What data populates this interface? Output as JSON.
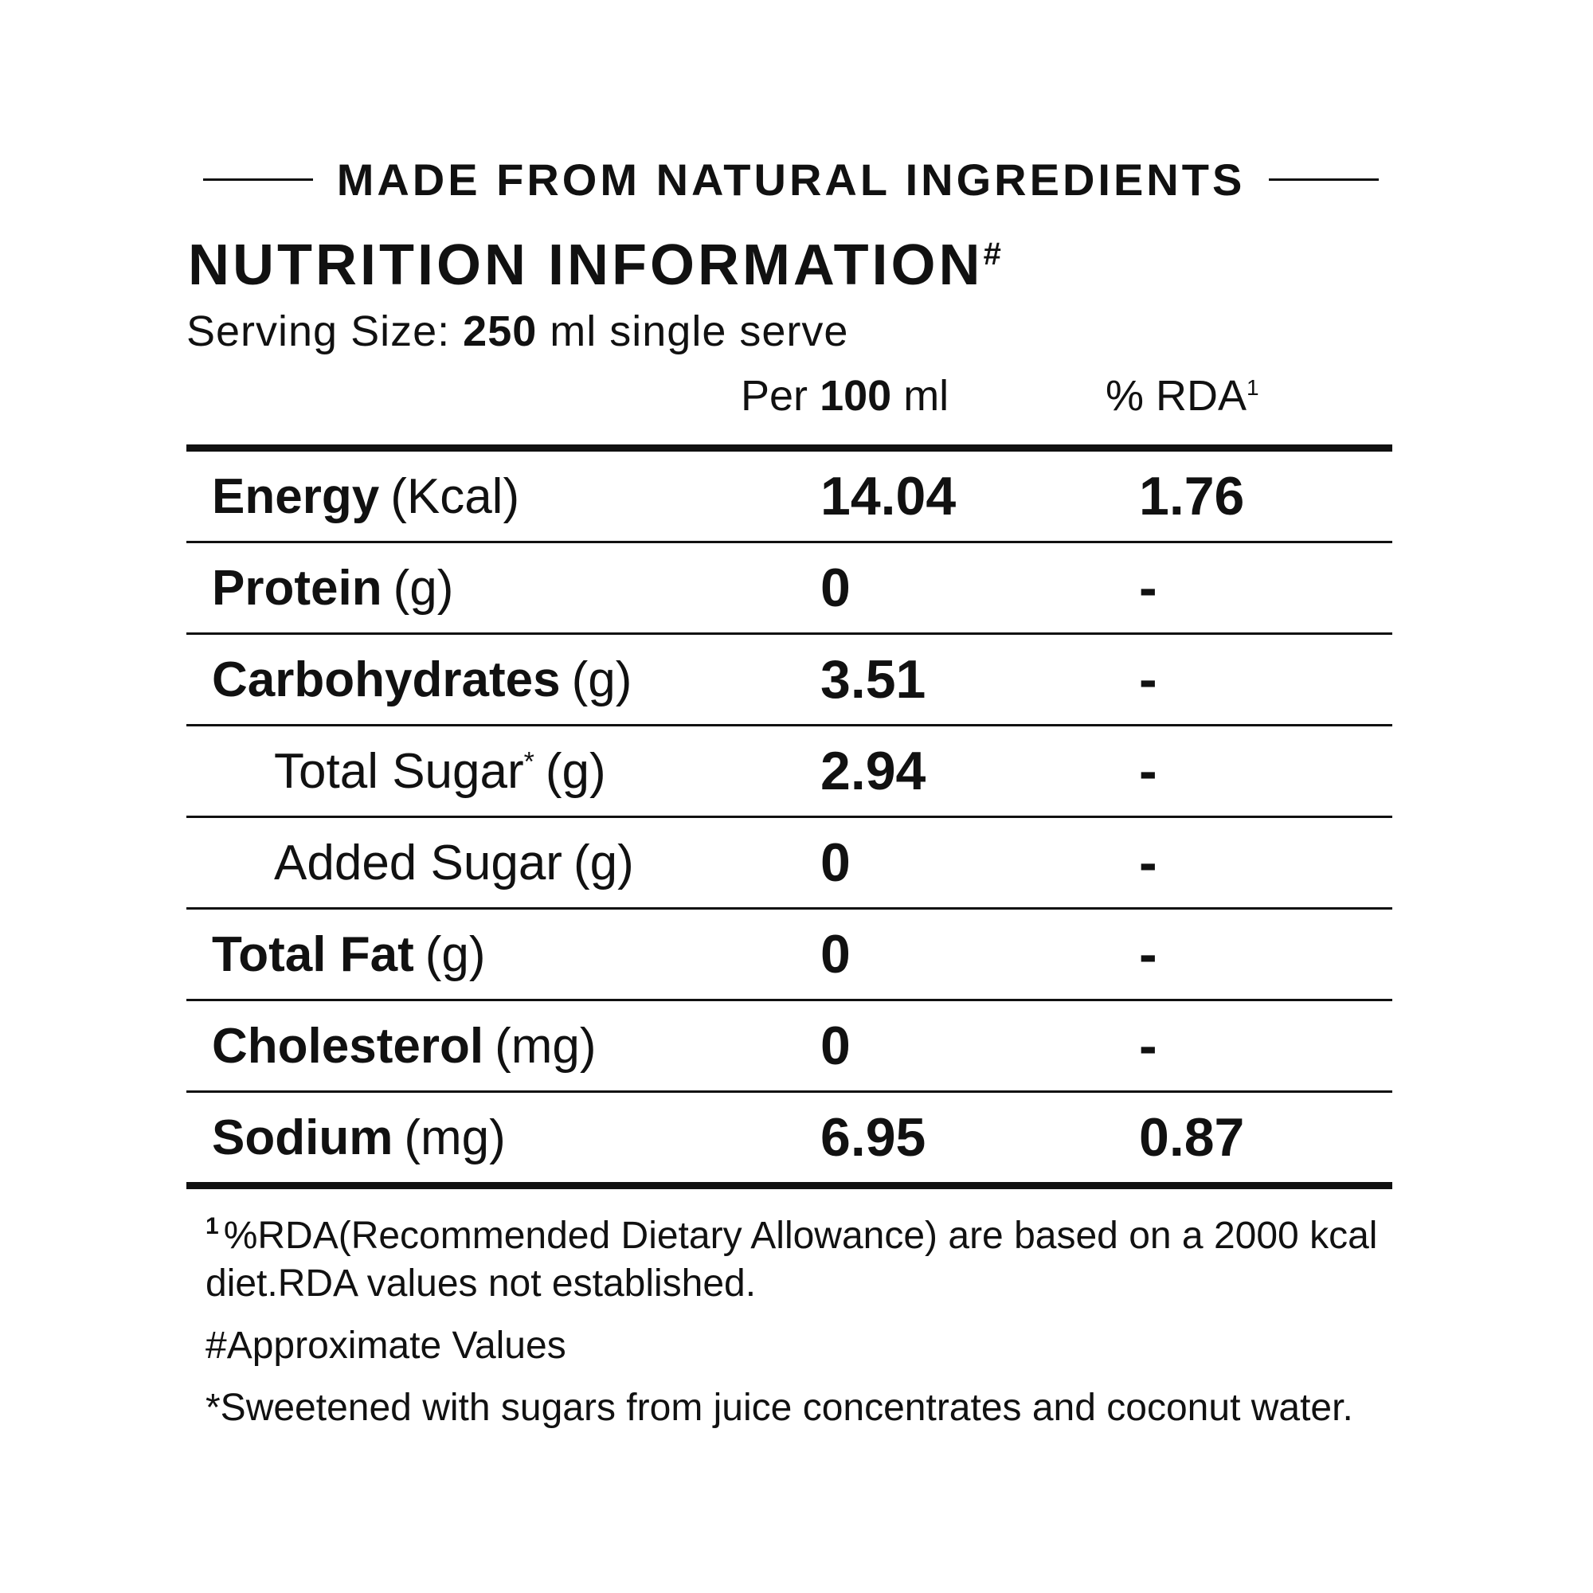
{
  "tagline": "MADE FROM NATURAL INGREDIENTS",
  "title": {
    "text": "NUTRITION INFORMATION",
    "marker": "#"
  },
  "serving": {
    "label": "Serving Size:",
    "amount": "250",
    "rest": "ml single serve"
  },
  "columns": {
    "per_prefix": "Per",
    "per_amount": "100",
    "per_unit": "ml",
    "rda": "% RDA",
    "rda_marker": "1"
  },
  "rows": [
    {
      "name": "Energy",
      "marker": "",
      "unit": "(Kcal)",
      "per100": "14.04",
      "rda": "1.76"
    },
    {
      "name": "Protein",
      "marker": "",
      "unit": "(g)",
      "per100": "0",
      "rda": "-"
    },
    {
      "name": "Carbohydrates",
      "marker": "",
      "unit": "(g)",
      "per100": "3.51",
      "rda": "-"
    },
    {
      "name": "Total Sugar",
      "marker": "*",
      "unit": "(g)",
      "per100": "2.94",
      "rda": "-"
    },
    {
      "name": "Added Sugar",
      "marker": "",
      "unit": "(g)",
      "per100": "0",
      "rda": "-"
    },
    {
      "name": "Total Fat",
      "marker": "",
      "unit": "(g)",
      "per100": "0",
      "rda": "-"
    },
    {
      "name": "Cholesterol",
      "marker": "",
      "unit": "(mg)",
      "per100": "0",
      "rda": "-"
    },
    {
      "name": "Sodium",
      "marker": "",
      "unit": "(mg)",
      "per100": "6.95",
      "rda": "0.87"
    }
  ],
  "footnotes": {
    "rda_marker": "1",
    "rda_note": "%RDA(Recommended Dietary Allowance) are based on a 2000 kcal diet.RDA values not established.",
    "approx": "#Approximate Values",
    "sweetened": "*Sweetened with sugars from juice concentrates and coconut water."
  }
}
